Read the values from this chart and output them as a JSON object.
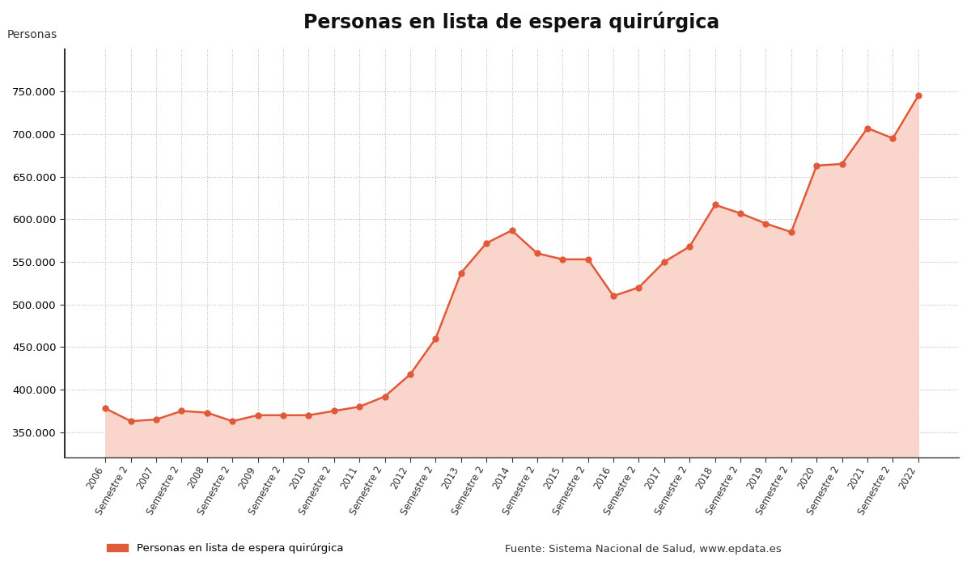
{
  "title": "Personas en lista de espera quirúrgica",
  "ylabel": "Personas",
  "line_color": "#e05a3a",
  "fill_color": "#f9d5cc",
  "background_color": "#ffffff",
  "grid_color": "#bbbbbb",
  "spine_color": "#333333",
  "x_labels": [
    "2006",
    "Semestre 2",
    "2007",
    "Semestre 2",
    "2008",
    "Semestre 2",
    "2009",
    "Semestre 2",
    "2010",
    "Semestre 2",
    "2011",
    "Semestre 2",
    "2012",
    "Semestre 2",
    "2013",
    "Semestre 2",
    "2014",
    "Semestre 2",
    "2015",
    "Semestre 2",
    "2016",
    "Semestre 2",
    "2017",
    "Semestre 2",
    "2018",
    "Semestre 2",
    "2019",
    "Semestre 2",
    "2020",
    "Semestre 2",
    "2021",
    "Semestre 2",
    "2022"
  ],
  "values": [
    378000,
    363000,
    365000,
    375000,
    373000,
    363000,
    370000,
    370000,
    370000,
    375000,
    380000,
    392000,
    418000,
    460000,
    537000,
    572000,
    587000,
    560000,
    553000,
    553000,
    510000,
    520000,
    550000,
    568000,
    617000,
    607000,
    595000,
    585000,
    663000,
    665000,
    707000,
    695000,
    745000
  ],
  "ylim_min": 320000,
  "ylim_max": 800000,
  "yticks": [
    350000,
    400000,
    450000,
    500000,
    550000,
    600000,
    650000,
    700000,
    750000
  ],
  "legend_label": "Personas en lista de espera quirúrgica",
  "source_text": "Fuente: Sistema Nacional de Salud, www.epdata.es",
  "marker_size": 5,
  "line_width": 1.8,
  "fill_baseline": 320000
}
